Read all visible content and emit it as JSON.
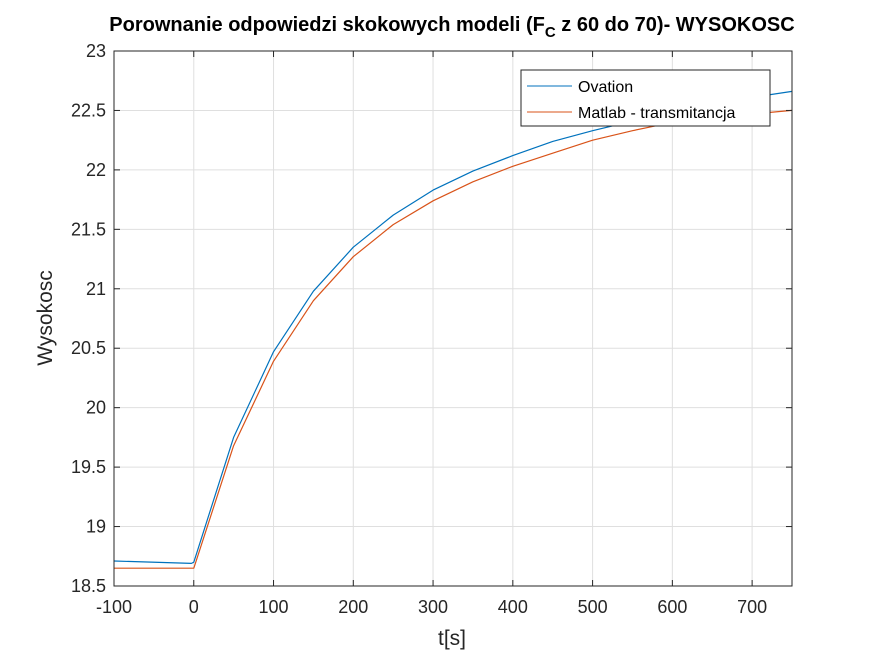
{
  "chart_data": {
    "type": "line",
    "title_main": "Porownanie odpowiedzi skokowych modeli (F",
    "title_sub": "C",
    "title_rest": " z 60 do 70)- WYSOKOSC",
    "xlabel": "t[s]",
    "ylabel": "Wysokosc",
    "xlim": [
      -100,
      750
    ],
    "ylim": [
      18.5,
      23
    ],
    "xticks": [
      -100,
      0,
      100,
      200,
      300,
      400,
      500,
      600,
      700
    ],
    "yticks": [
      18.5,
      19,
      19.5,
      20,
      20.5,
      21,
      21.5,
      22,
      22.5,
      23
    ],
    "grid": true,
    "legend_position": "top-right",
    "series": [
      {
        "name": "Ovation",
        "color": "#0072BD",
        "points": [
          [
            -100,
            18.71
          ],
          [
            -3,
            18.69
          ],
          [
            0,
            18.7
          ],
          [
            50,
            19.75
          ],
          [
            100,
            20.47
          ],
          [
            150,
            20.98
          ],
          [
            200,
            21.35
          ],
          [
            250,
            21.62
          ],
          [
            300,
            21.83
          ],
          [
            350,
            21.99
          ],
          [
            400,
            22.12
          ],
          [
            450,
            22.24
          ],
          [
            500,
            22.33
          ],
          [
            550,
            22.41
          ],
          [
            600,
            22.49
          ],
          [
            650,
            22.55
          ],
          [
            700,
            22.61
          ],
          [
            750,
            22.66
          ]
        ]
      },
      {
        "name": "Matlab - transmitancja",
        "color": "#D95319",
        "points": [
          [
            -100,
            18.65
          ],
          [
            0,
            18.65
          ],
          [
            50,
            19.68
          ],
          [
            100,
            20.39
          ],
          [
            150,
            20.9
          ],
          [
            200,
            21.27
          ],
          [
            250,
            21.54
          ],
          [
            300,
            21.74
          ],
          [
            350,
            21.9
          ],
          [
            400,
            22.03
          ],
          [
            450,
            22.14
          ],
          [
            500,
            22.25
          ],
          [
            550,
            22.33
          ],
          [
            600,
            22.4
          ],
          [
            650,
            22.44
          ],
          [
            700,
            22.47
          ],
          [
            750,
            22.5
          ]
        ]
      }
    ]
  }
}
